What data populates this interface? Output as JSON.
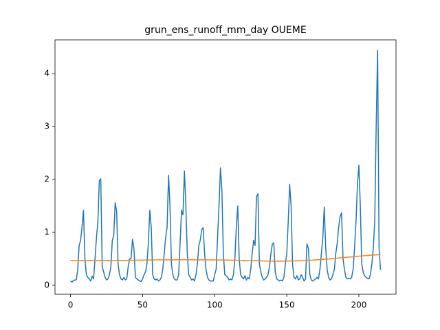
{
  "chart_data": {
    "type": "line",
    "title": "grun_ens_runoff_mm_day OUEME",
    "xlim": [
      -10.75,
      225.75
    ],
    "ylim": [
      -0.17,
      4.64
    ],
    "xticks": [
      0,
      50,
      100,
      150,
      200
    ],
    "yticks": [
      0,
      1,
      2,
      3,
      4
    ],
    "series": [
      {
        "color": "#1f77b4",
        "x": [
          0,
          1,
          2,
          3,
          4,
          5,
          6,
          7,
          8,
          9,
          10,
          11,
          12,
          13,
          14,
          15,
          16,
          17,
          18,
          19,
          20,
          21,
          22,
          23,
          24,
          25,
          26,
          27,
          28,
          29,
          30,
          31,
          32,
          33,
          34,
          35,
          36,
          37,
          38,
          39,
          40,
          41,
          42,
          43,
          44,
          45,
          46,
          47,
          48,
          49,
          50,
          51,
          52,
          53,
          54,
          55,
          56,
          57,
          58,
          59,
          60,
          61,
          62,
          63,
          64,
          65,
          66,
          67,
          68,
          69,
          70,
          71,
          72,
          73,
          74,
          75,
          76,
          77,
          78,
          79,
          80,
          81,
          82,
          83,
          84,
          85,
          86,
          87,
          88,
          89,
          90,
          91,
          92,
          93,
          94,
          95,
          96,
          97,
          98,
          99,
          100,
          101,
          102,
          103,
          104,
          105,
          106,
          107,
          108,
          109,
          110,
          111,
          112,
          113,
          114,
          115,
          116,
          117,
          118,
          119,
          120,
          121,
          122,
          123,
          124,
          125,
          126,
          127,
          128,
          129,
          130,
          131,
          132,
          133,
          134,
          135,
          136,
          137,
          138,
          139,
          140,
          141,
          142,
          143,
          144,
          145,
          146,
          147,
          148,
          149,
          150,
          151,
          152,
          153,
          154,
          155,
          156,
          157,
          158,
          159,
          160,
          161,
          162,
          163,
          164,
          165,
          166,
          167,
          168,
          169,
          170,
          171,
          172,
          173,
          174,
          175,
          176,
          177,
          178,
          179,
          180,
          181,
          182,
          183,
          184,
          185,
          186,
          187,
          188,
          189,
          190,
          191,
          192,
          193,
          194,
          195,
          196,
          197,
          198,
          199,
          200,
          201,
          202,
          203,
          204,
          205,
          206,
          207,
          208,
          209,
          210,
          211,
          212,
          213,
          214,
          215
        ],
        "values": [
          0.08,
          0.06,
          0.09,
          0.1,
          0.1,
          0.3,
          0.75,
          0.85,
          1.1,
          1.42,
          0.5,
          0.2,
          0.15,
          0.12,
          0.08,
          0.17,
          0.12,
          0.5,
          0.9,
          1.2,
          1.98,
          2.01,
          0.35,
          0.25,
          0.15,
          0.1,
          0.12,
          0.2,
          0.35,
          0.85,
          0.95,
          1.56,
          1.4,
          0.4,
          0.2,
          0.12,
          0.1,
          0.15,
          0.1,
          0.12,
          0.35,
          0.5,
          0.5,
          0.87,
          0.7,
          0.15,
          0.12,
          0.1,
          0.08,
          0.07,
          0.12,
          0.2,
          0.25,
          0.4,
          0.8,
          1.42,
          1.1,
          0.2,
          0.12,
          0.1,
          0.12,
          0.08,
          0.1,
          0.15,
          0.3,
          0.6,
          0.9,
          1.1,
          2.08,
          1.5,
          0.4,
          0.2,
          0.12,
          0.1,
          0.1,
          0.2,
          0.8,
          1.42,
          1.33,
          2.16,
          1.5,
          0.6,
          0.2,
          0.15,
          0.1,
          0.12,
          0.08,
          0.2,
          0.4,
          0.75,
          0.85,
          1.05,
          1.09,
          0.6,
          0.3,
          0.15,
          0.1,
          0.08,
          0.08,
          0.08,
          0.2,
          0.3,
          0.9,
          1.5,
          2.22,
          1.8,
          0.6,
          0.2,
          0.18,
          0.15,
          0.1,
          0.12,
          0.1,
          0.2,
          0.5,
          1.1,
          1.5,
          0.5,
          0.2,
          0.15,
          0.12,
          0.18,
          0.1,
          0.15,
          0.12,
          0.3,
          0.6,
          0.85,
          0.75,
          1.68,
          1.73,
          0.4,
          0.25,
          0.15,
          0.1,
          0.12,
          0.15,
          0.2,
          0.35,
          0.6,
          0.78,
          0.8,
          0.25,
          0.12,
          0.1,
          0.08,
          0.1,
          0.08,
          0.15,
          0.4,
          0.6,
          1.2,
          1.91,
          1.5,
          0.4,
          0.15,
          0.12,
          0.18,
          0.1,
          0.12,
          0.2,
          0.15,
          0.08,
          0.12,
          0.78,
          0.7,
          0.2,
          0.1,
          0.08,
          0.1,
          0.12,
          0.15,
          0.12,
          0.3,
          0.6,
          0.9,
          1.48,
          0.7,
          0.3,
          0.15,
          0.1,
          0.12,
          0.2,
          0.3,
          0.6,
          0.8,
          1.1,
          1.3,
          1.37,
          0.5,
          0.3,
          0.15,
          0.12,
          0.13,
          0.12,
          0.15,
          0.3,
          0.7,
          1.2,
          1.9,
          2.27,
          1.5,
          0.4,
          0.25,
          0.18,
          0.15,
          0.13,
          0.12,
          0.2,
          0.4,
          0.7,
          1.2,
          3.0,
          4.44,
          0.7,
          0.29
        ]
      },
      {
        "color": "#ff7f0e",
        "x": [
          0,
          12,
          24,
          36,
          48,
          60,
          72,
          84,
          96,
          108,
          120,
          132,
          144,
          156,
          168,
          180,
          192,
          204,
          215
        ],
        "values": [
          0.47,
          0.47,
          0.47,
          0.47,
          0.475,
          0.48,
          0.482,
          0.482,
          0.48,
          0.477,
          0.47,
          0.46,
          0.455,
          0.46,
          0.475,
          0.5,
          0.53,
          0.56,
          0.58
        ]
      }
    ]
  }
}
